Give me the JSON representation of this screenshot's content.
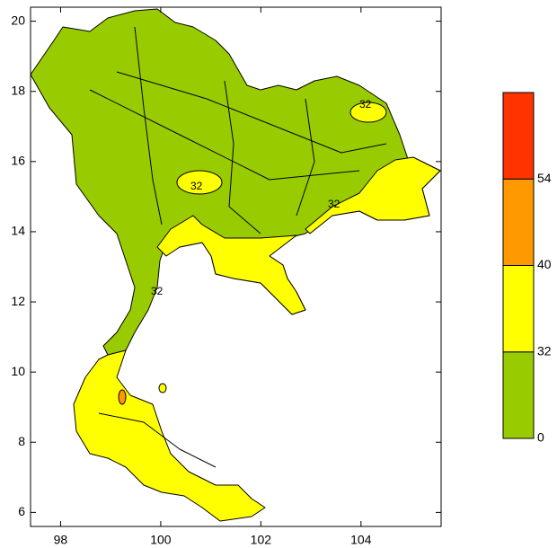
{
  "map": {
    "xlim": [
      97.4,
      105.6
    ],
    "ylim": [
      5.6,
      20.4
    ],
    "xticks": [
      98,
      100,
      102,
      104
    ],
    "yticks": [
      6,
      8,
      10,
      12,
      14,
      16,
      18,
      20
    ],
    "colorbar": {
      "levels": [
        0,
        32,
        40,
        54
      ],
      "colors": [
        "#99cc00",
        "#ffff00",
        "#ff9900",
        "#ff3300"
      ]
    },
    "contour_labels": [
      "32",
      "32",
      "32",
      "32"
    ]
  }
}
